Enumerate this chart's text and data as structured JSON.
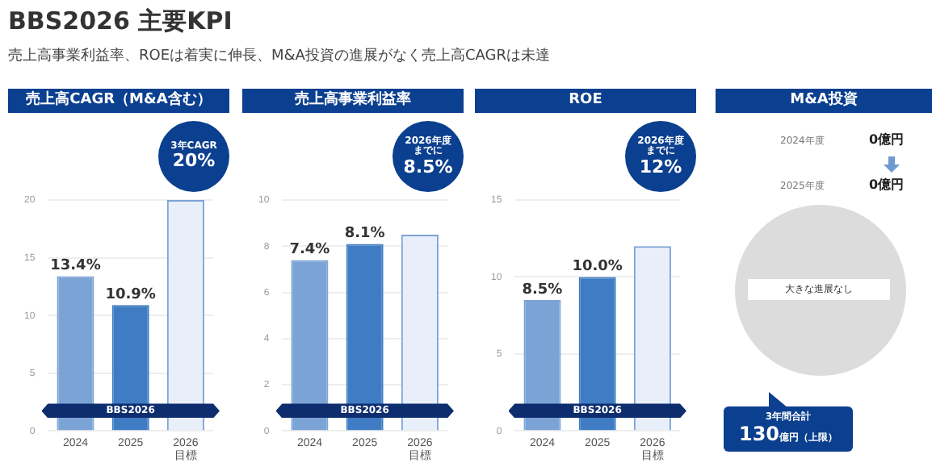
{
  "chart_data": [
    {
      "type": "other",
      "title": "BBS2026 主要KPI",
      "subtitle": "売上高事業利益率、ROEは着実に伸長、M&A投資の進展がなく売上高CAGRは未達"
    },
    {
      "type": "bar",
      "title": "売上高CAGR（M&A含む）",
      "categories": [
        "2024",
        "2025",
        "2026\n目標"
      ],
      "values": [
        13.4,
        10.9,
        20
      ],
      "colors": [
        "#7ba3d6",
        "#3f7cc4",
        "#e9eff8"
      ],
      "value_labels": [
        "13.4%",
        "10.9%",
        null
      ],
      "ylim": [
        0,
        20
      ],
      "yticks": [
        0,
        5,
        10,
        15,
        20
      ],
      "grid": "y",
      "annotations": [
        "3年CAGR",
        "20%",
        "BBS2026"
      ]
    },
    {
      "type": "bar",
      "title": "売上高事業利益率",
      "categories": [
        "2024",
        "2025",
        "2026\n目標"
      ],
      "values": [
        7.4,
        8.1,
        8.5
      ],
      "colors": [
        "#7ba3d6",
        "#3f7cc4",
        "#e9eff8"
      ],
      "value_labels": [
        "7.4%",
        "8.1%",
        null
      ],
      "ylim": [
        0,
        10
      ],
      "yticks": [
        0,
        2,
        4,
        6,
        8,
        10
      ],
      "grid": "y",
      "annotations": [
        "2026年度",
        "までに",
        "8.5%",
        "BBS2026"
      ]
    },
    {
      "type": "bar",
      "title": "ROE",
      "categories": [
        "2024",
        "2025",
        "2026\n目標"
      ],
      "values": [
        8.5,
        10.0,
        12
      ],
      "colors": [
        "#7ba3d6",
        "#3f7cc4",
        "#e9eff8"
      ],
      "value_labels": [
        "8.5%",
        "10.0%",
        null
      ],
      "ylim": [
        0,
        15
      ],
      "yticks": [
        0,
        5,
        10,
        15
      ],
      "grid": "y",
      "annotations": [
        "2026年度",
        "までに",
        "12%",
        "BBS2026"
      ]
    },
    {
      "type": "other",
      "title": "M&A投資",
      "annotations": [
        "2024年度",
        "0億円",
        "2025年度",
        "0億円",
        "大きな進展なし",
        "3年間合計",
        "130億円（上限）"
      ]
    }
  ]
}
